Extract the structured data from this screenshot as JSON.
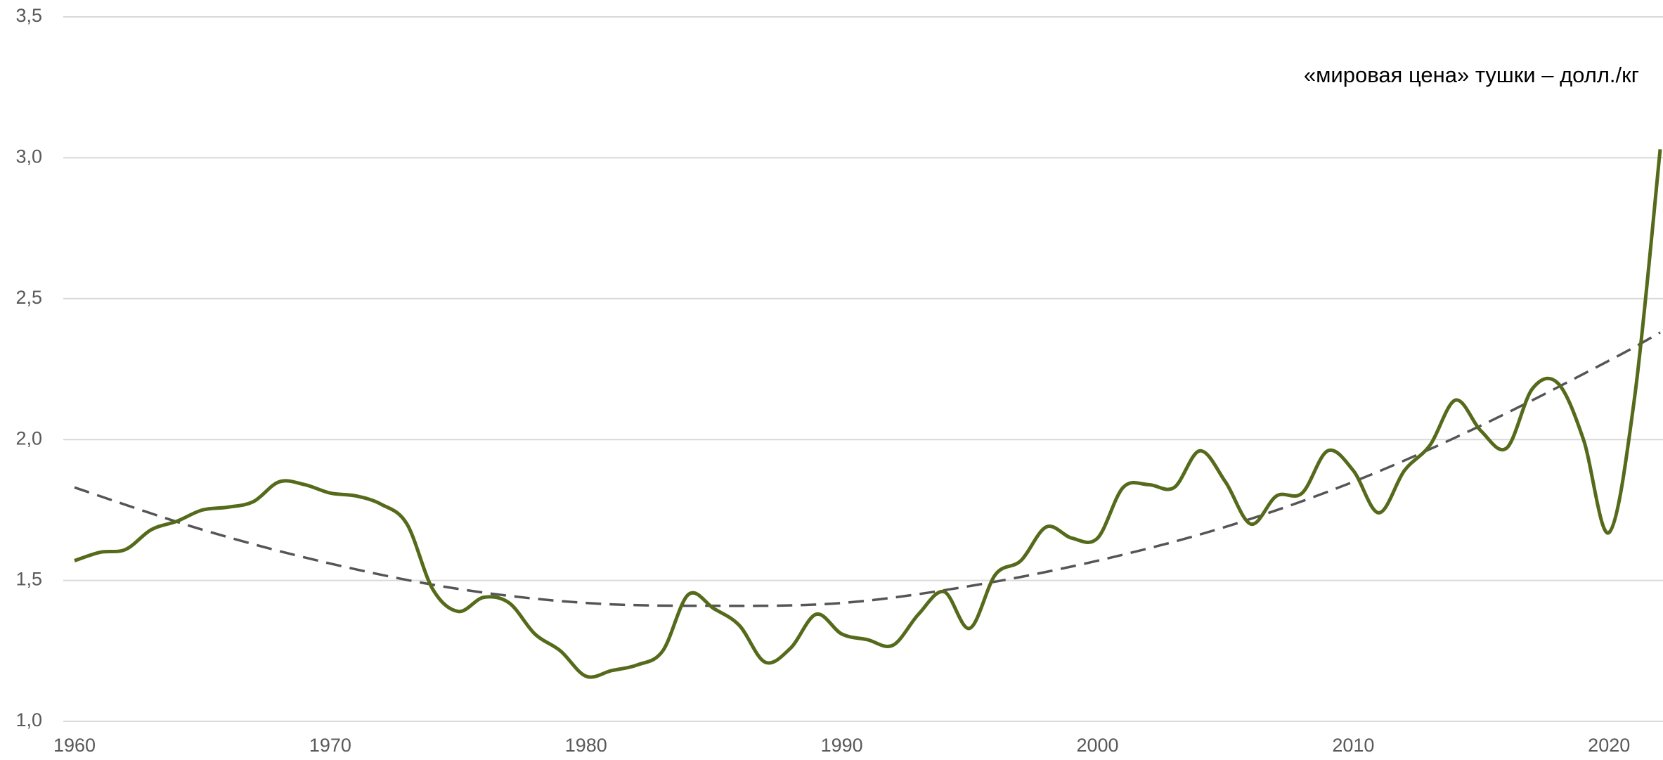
{
  "chart_data": {
    "type": "line",
    "annotation": "«мировая цена» тушки – долл./кг",
    "x": [
      1960,
      1961,
      1962,
      1963,
      1964,
      1965,
      1966,
      1967,
      1968,
      1969,
      1970,
      1971,
      1972,
      1973,
      1974,
      1975,
      1976,
      1977,
      1978,
      1979,
      1980,
      1981,
      1982,
      1983,
      1984,
      1985,
      1986,
      1987,
      1988,
      1989,
      1990,
      1991,
      1992,
      1993,
      1994,
      1995,
      1996,
      1997,
      1998,
      1999,
      2000,
      2001,
      2002,
      2003,
      2004,
      2005,
      2006,
      2007,
      2008,
      2009,
      2010,
      2011,
      2012,
      2013,
      2014,
      2015,
      2016,
      2017,
      2018,
      2019,
      2020,
      2021,
      2022
    ],
    "series": [
      {
        "color": "#556b1b",
        "values": [
          1.57,
          1.6,
          1.61,
          1.68,
          1.71,
          1.75,
          1.76,
          1.78,
          1.85,
          1.84,
          1.81,
          1.8,
          1.77,
          1.7,
          1.47,
          1.39,
          1.44,
          1.42,
          1.31,
          1.25,
          1.16,
          1.18,
          1.2,
          1.25,
          1.45,
          1.4,
          1.34,
          1.21,
          1.26,
          1.38,
          1.31,
          1.29,
          1.27,
          1.38,
          1.46,
          1.33,
          1.52,
          1.57,
          1.69,
          1.65,
          1.65,
          1.83,
          1.84,
          1.83,
          1.96,
          1.85,
          1.7,
          1.8,
          1.81,
          1.96,
          1.89,
          1.74,
          1.89,
          1.98,
          2.14,
          2.03,
          1.97,
          2.18,
          2.2,
          2.0,
          1.67,
          2.15,
          3.03
        ]
      }
    ],
    "trend": {
      "color": "#555555",
      "x": [
        1960,
        1965,
        1970,
        1975,
        1980,
        1985,
        1990,
        1995,
        2000,
        2005,
        2010,
        2015,
        2020,
        2022
      ],
      "values": [
        1.83,
        1.68,
        1.56,
        1.47,
        1.42,
        1.41,
        1.42,
        1.48,
        1.57,
        1.69,
        1.85,
        2.05,
        2.28,
        2.38
      ]
    },
    "xlim": [
      1960,
      2022
    ],
    "xticks": [
      1960,
      1970,
      1980,
      1990,
      2000,
      2010,
      2020
    ],
    "ylim": [
      1,
      3.5
    ],
    "yticks": [
      {
        "value": 1,
        "label": "1,0"
      },
      {
        "value": 1.5,
        "label": "1,5"
      },
      {
        "value": 2,
        "label": "2,0"
      },
      {
        "value": 2.5,
        "label": "2,5"
      },
      {
        "value": 3,
        "label": "3,0"
      },
      {
        "value": 3.5,
        "label": "3,5"
      }
    ],
    "grid": true
  }
}
